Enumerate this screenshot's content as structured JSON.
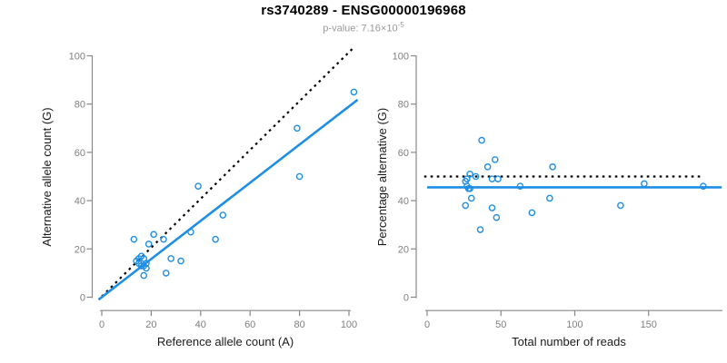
{
  "header": {
    "title": "rs3740289 - ENSG00000196968",
    "p_value_base": "p-value: 7.16×10",
    "p_value_exp": "-5"
  },
  "colors": {
    "accent_blue": "#1E8FE5",
    "dotted_line": "#000000",
    "axis_line": "#888888",
    "tick_label": "#808080",
    "axis_title": "#1a1a1a",
    "title": "#000000",
    "subtitle": "#9a9a9a"
  },
  "chart_data": [
    {
      "type": "scatter",
      "xlabel": "Reference allele count (A)",
      "ylabel": "Alternative allele count (G)",
      "xlim": [
        0,
        105
      ],
      "ylim": [
        0,
        103
      ],
      "xticks": [
        0,
        20,
        40,
        60,
        80,
        100
      ],
      "yticks": [
        0,
        20,
        40,
        60,
        80,
        100
      ],
      "grid": false,
      "legend": "none",
      "points": [
        [
          102,
          85
        ],
        [
          79,
          70
        ],
        [
          80,
          50
        ],
        [
          39,
          46
        ],
        [
          49,
          34
        ],
        [
          46,
          24
        ],
        [
          36,
          27
        ],
        [
          13,
          24
        ],
        [
          21,
          26
        ],
        [
          25,
          24
        ],
        [
          19,
          22
        ],
        [
          28,
          16
        ],
        [
          32,
          15
        ],
        [
          16,
          17
        ],
        [
          17,
          16
        ],
        [
          15,
          14
        ],
        [
          17,
          13
        ],
        [
          18,
          12
        ],
        [
          17,
          9
        ],
        [
          26,
          10
        ],
        [
          14,
          15
        ],
        [
          16,
          13
        ],
        [
          15,
          16
        ],
        [
          18,
          14
        ]
      ],
      "lines": [
        {
          "name": "identity",
          "style": "dotted",
          "color": "#000000",
          "from": [
            0,
            0.3
          ],
          "to": [
            101.5,
            103
          ]
        },
        {
          "name": "regression",
          "style": "solid",
          "color": "#1E8FE5",
          "slope": 0.79,
          "intercept": 0,
          "from": [
            -1.3,
            -1.0
          ],
          "to": [
            103.5,
            81.8
          ]
        }
      ]
    },
    {
      "type": "scatter",
      "xlabel": "Total number of reads",
      "ylabel": "Percentage alternative (G)",
      "xlim": [
        0,
        200
      ],
      "ylim": [
        0,
        103
      ],
      "xticks": [
        0,
        50,
        100,
        150
      ],
      "yticks": [
        0,
        20,
        40,
        60,
        80,
        100
      ],
      "grid": false,
      "legend": "none",
      "points": [
        [
          29,
          51
        ],
        [
          27,
          49
        ],
        [
          26,
          48
        ],
        [
          33,
          50
        ],
        [
          44,
          49
        ],
        [
          48,
          49
        ],
        [
          27,
          46
        ],
        [
          29,
          45
        ],
        [
          28,
          45
        ],
        [
          30,
          41
        ],
        [
          26,
          38
        ],
        [
          44,
          37
        ],
        [
          47,
          33
        ],
        [
          63,
          46
        ],
        [
          37,
          65
        ],
        [
          46,
          57
        ],
        [
          41,
          54
        ],
        [
          85,
          54
        ],
        [
          36,
          28
        ],
        [
          71,
          35
        ],
        [
          83,
          41
        ],
        [
          131,
          38
        ],
        [
          147,
          47
        ],
        [
          187,
          46
        ]
      ],
      "lines": [
        {
          "name": "null-50pct",
          "style": "dotted",
          "color": "#000000",
          "from": [
            -2,
            50
          ],
          "to": [
            185,
            50
          ]
        },
        {
          "name": "mean-pct",
          "style": "solid",
          "color": "#1E8FE5",
          "from": [
            0,
            45.5
          ],
          "to": [
            199.5,
            45.5
          ]
        }
      ]
    }
  ]
}
